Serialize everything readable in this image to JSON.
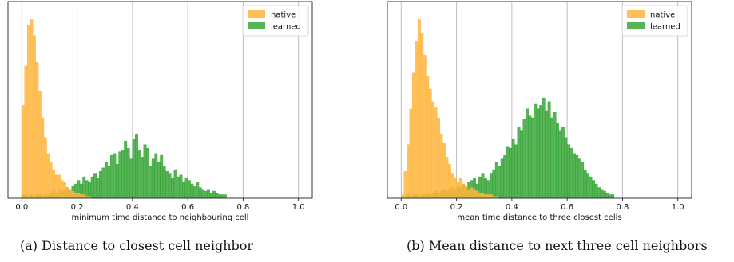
{
  "captions": [
    "(a) Distance to closest cell neighbor",
    "(b) Mean distance to next three cell neighbors"
  ],
  "chart_data": [
    {
      "type": "bar",
      "title": "",
      "xlabel": "minimum time distance to neighbouring cell",
      "ylabel": "",
      "xlim": [
        -0.05,
        1.05
      ],
      "ylim": [
        0,
        1.1
      ],
      "xticks": [
        "0.0",
        "0.2",
        "0.4",
        "0.6",
        "0.8",
        "1.0"
      ],
      "bin_width": 0.01,
      "grid": "x",
      "legend": "top-right",
      "colors": {
        "native": "#ffb43c",
        "learned": "#2ca02c"
      },
      "series": [
        {
          "name": "native",
          "x_start": 0.0,
          "values": [
            0.52,
            0.74,
            0.97,
            1.0,
            0.91,
            0.76,
            0.6,
            0.45,
            0.34,
            0.25,
            0.2,
            0.16,
            0.13,
            0.13,
            0.1,
            0.09,
            0.06,
            0.05,
            0.04,
            0.03,
            0.03,
            0.02,
            0.02,
            0.01,
            0.01
          ]
        },
        {
          "name": "learned",
          "x_start": 0.0,
          "values": [
            0.02,
            0.02,
            0.01,
            0.02,
            0.01,
            0.02,
            0.02,
            0.01,
            0.02,
            0.02,
            0.03,
            0.04,
            0.03,
            0.05,
            0.04,
            0.05,
            0.06,
            0.05,
            0.07,
            0.08,
            0.1,
            0.08,
            0.12,
            0.1,
            0.09,
            0.12,
            0.14,
            0.11,
            0.15,
            0.17,
            0.2,
            0.18,
            0.24,
            0.25,
            0.19,
            0.26,
            0.27,
            0.32,
            0.28,
            0.22,
            0.33,
            0.36,
            0.27,
            0.23,
            0.3,
            0.28,
            0.18,
            0.22,
            0.25,
            0.2,
            0.24,
            0.18,
            0.15,
            0.14,
            0.11,
            0.16,
            0.12,
            0.13,
            0.09,
            0.11,
            0.1,
            0.08,
            0.07,
            0.09,
            0.06,
            0.05,
            0.04,
            0.05,
            0.03,
            0.04,
            0.03,
            0.02,
            0.02,
            0.02
          ]
        }
      ]
    },
    {
      "type": "bar",
      "title": "",
      "xlabel": "mean time distance to three closest cells",
      "ylabel": "",
      "xlim": [
        -0.05,
        1.05
      ],
      "ylim": [
        0,
        1.1
      ],
      "xticks": [
        "0.0",
        "0.2",
        "0.4",
        "0.6",
        "0.8",
        "1.0"
      ],
      "bin_width": 0.01,
      "grid": "x",
      "legend": "top-right",
      "colors": {
        "native": "#ffb43c",
        "learned": "#2ca02c"
      },
      "series": [
        {
          "name": "native",
          "x_start": 0.0,
          "values": [
            0.02,
            0.15,
            0.3,
            0.5,
            0.7,
            0.88,
            1.0,
            0.92,
            0.8,
            0.68,
            0.61,
            0.54,
            0.51,
            0.45,
            0.36,
            0.31,
            0.23,
            0.19,
            0.14,
            0.11,
            0.09,
            0.11,
            0.08,
            0.07,
            0.05,
            0.06,
            0.05,
            0.04,
            0.03,
            0.03,
            0.02,
            0.02,
            0.02,
            0.01,
            0.01
          ]
        },
        {
          "name": "learned",
          "x_start": 0.0,
          "values": [
            0.01,
            0.01,
            0.02,
            0.01,
            0.02,
            0.02,
            0.01,
            0.02,
            0.02,
            0.03,
            0.02,
            0.03,
            0.04,
            0.03,
            0.04,
            0.05,
            0.04,
            0.05,
            0.06,
            0.05,
            0.07,
            0.06,
            0.08,
            0.06,
            0.09,
            0.1,
            0.11,
            0.08,
            0.12,
            0.14,
            0.11,
            0.1,
            0.14,
            0.16,
            0.2,
            0.18,
            0.22,
            0.24,
            0.29,
            0.28,
            0.33,
            0.3,
            0.4,
            0.38,
            0.44,
            0.5,
            0.46,
            0.45,
            0.53,
            0.5,
            0.52,
            0.56,
            0.49,
            0.54,
            0.45,
            0.48,
            0.42,
            0.38,
            0.4,
            0.34,
            0.3,
            0.28,
            0.25,
            0.24,
            0.22,
            0.2,
            0.16,
            0.14,
            0.12,
            0.1,
            0.08,
            0.06,
            0.05,
            0.04,
            0.03,
            0.02,
            0.02
          ]
        }
      ]
    }
  ]
}
